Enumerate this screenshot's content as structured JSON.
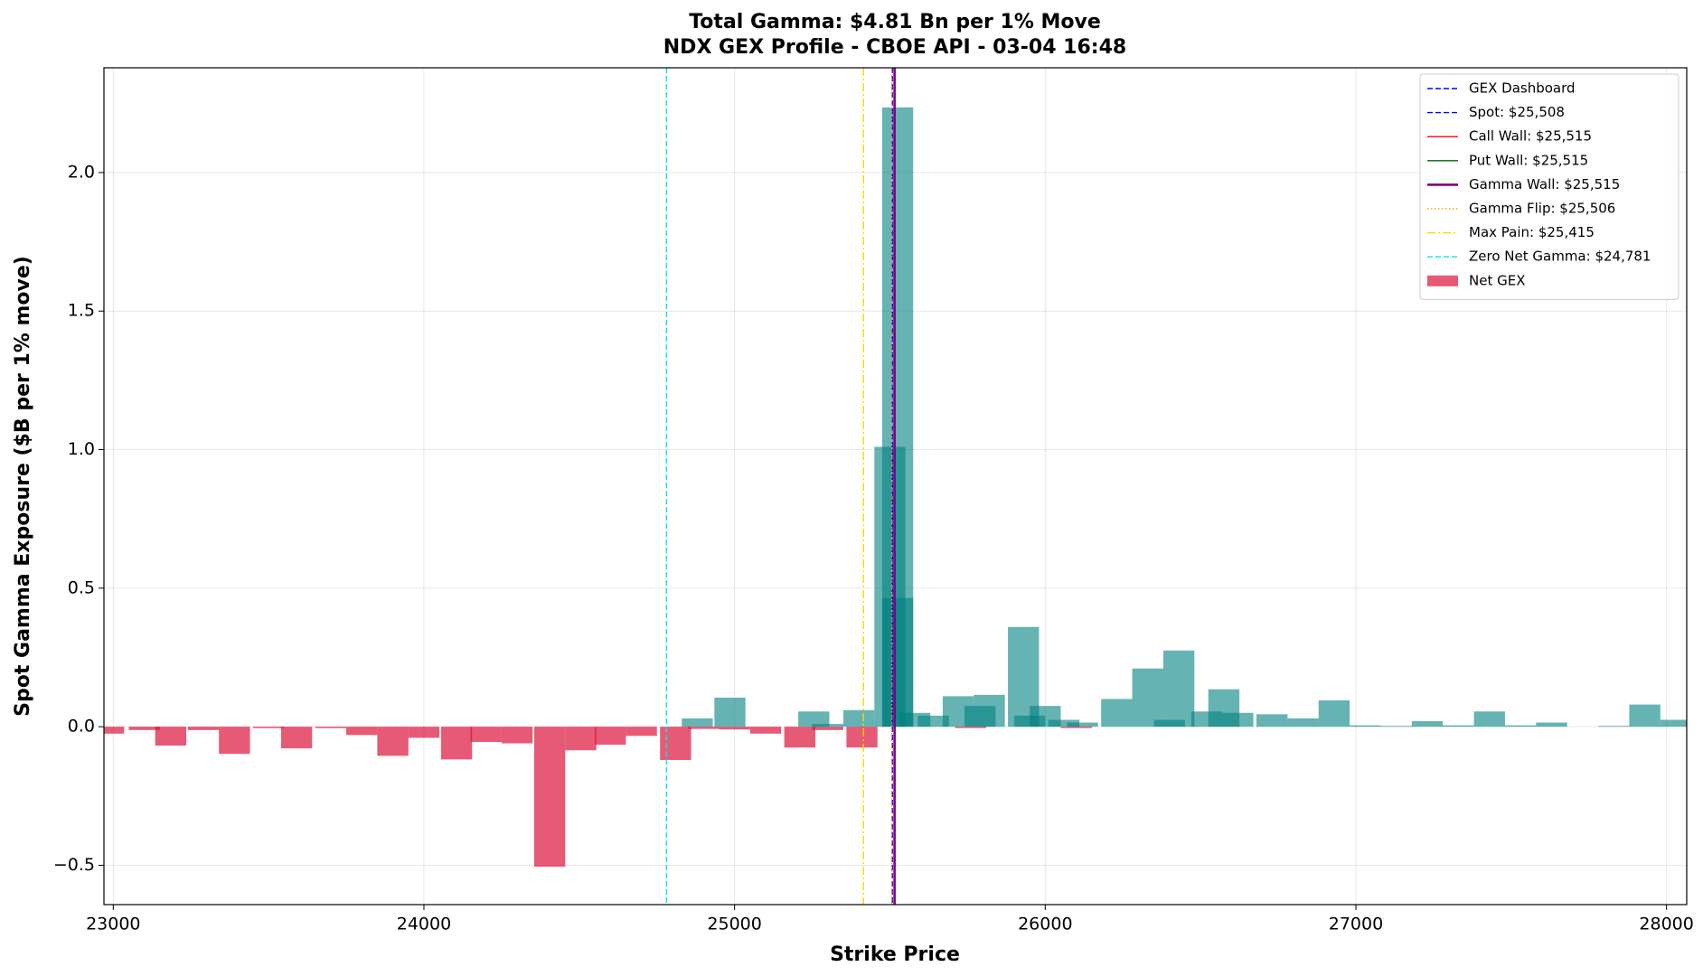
{
  "chart_data": {
    "type": "bar",
    "title": "Total Gamma: $4.81 Bn per 1% Move",
    "subtitle": "NDX GEX Profile - CBOE API - 03-04 16:48",
    "x_label": "Strike Price",
    "y_label": "Spot Gamma Exposure ($B per 1% move)",
    "bar_width": 100,
    "series": [
      {
        "name": "Net GEX",
        "color": "#dc143c",
        "positive_color": "#008080",
        "x": [
          22985,
          23100,
          23185,
          23290,
          23390,
          23500,
          23590,
          23700,
          23800,
          23900,
          24000,
          24105,
          24200,
          24300,
          24405,
          24505,
          24600,
          24700,
          24810,
          24900,
          25000,
          25100,
          25210,
          25300,
          25410,
          25760,
          26100,
          24880,
          24985,
          25255,
          25300,
          25400,
          25500,
          25525,
          25525,
          25580,
          25640,
          25720,
          25790,
          25820,
          25930,
          25950,
          26000,
          26060,
          26120,
          26230,
          26330,
          26430,
          26400,
          26520,
          26575,
          26620,
          26730,
          26830,
          26930,
          27030,
          27130,
          27230,
          27330,
          27430,
          27530,
          27630,
          27830,
          27930,
          28030
        ],
        "values": [
          -0.025,
          -0.012,
          -0.068,
          -0.012,
          -0.098,
          -0.005,
          -0.078,
          -0.005,
          -0.03,
          -0.105,
          -0.04,
          -0.118,
          -0.055,
          -0.06,
          -0.505,
          -0.085,
          -0.065,
          -0.033,
          -0.12,
          -0.008,
          -0.01,
          -0.025,
          -0.075,
          -0.012,
          -0.075,
          -0.005,
          -0.005,
          0.03,
          0.105,
          0.055,
          0.01,
          0.06,
          1.01,
          2.235,
          0.465,
          0.05,
          0.04,
          0.11,
          0.075,
          0.115,
          0.36,
          0.04,
          0.075,
          0.025,
          0.015,
          0.1,
          0.21,
          0.275,
          0.025,
          0.055,
          0.135,
          0.05,
          0.045,
          0.03,
          0.095,
          0.005,
          0.003,
          0.02,
          0.005,
          0.055,
          0.005,
          0.015,
          0.003,
          0.08,
          0.025
        ]
      }
    ],
    "lines": [
      {
        "name": " GEX Dashboard",
        "color": "#0000ff",
        "style": "dashed"
      },
      {
        "name": "Spot: $25,508",
        "x": 25508,
        "color": "#0000ff",
        "style": "dashed"
      },
      {
        "name": "Call Wall: $25,515",
        "x": 25515,
        "color": "#ff0000",
        "style": "solid"
      },
      {
        "name": "Put Wall: $25,515",
        "x": 25515,
        "color": "#006400",
        "style": "solid"
      },
      {
        "name": "Gamma Wall: $25,515",
        "x": 25515,
        "color": "#800080",
        "style": "thick"
      },
      {
        "name": "Gamma Flip: $25,506",
        "x": 25506,
        "color": "#ffa500",
        "style": "dotted"
      },
      {
        "name": "Max Pain: $25,415",
        "x": 25415,
        "color": "#ffd700",
        "style": "dashdot"
      },
      {
        "name": "Zero Net Gamma: $24,781",
        "x": 24781,
        "color": "#00e5e5",
        "style": "dashed"
      }
    ],
    "xlim": [
      22970,
      28065
    ],
    "ylim": [
      -0.642,
      2.378
    ],
    "xticks": [
      23000,
      24000,
      25000,
      26000,
      27000,
      28000
    ],
    "yticks": [
      {
        "value": -0.5,
        "label": "−0.5"
      },
      {
        "value": 0,
        "label": "0.0"
      },
      {
        "value": 0.5,
        "label": "0.5"
      },
      {
        "value": 1,
        "label": "1.0"
      },
      {
        "value": 1.5,
        "label": "1.5"
      },
      {
        "value": 2,
        "label": "2.0"
      }
    ],
    "grid": true,
    "legend": "upper right"
  }
}
